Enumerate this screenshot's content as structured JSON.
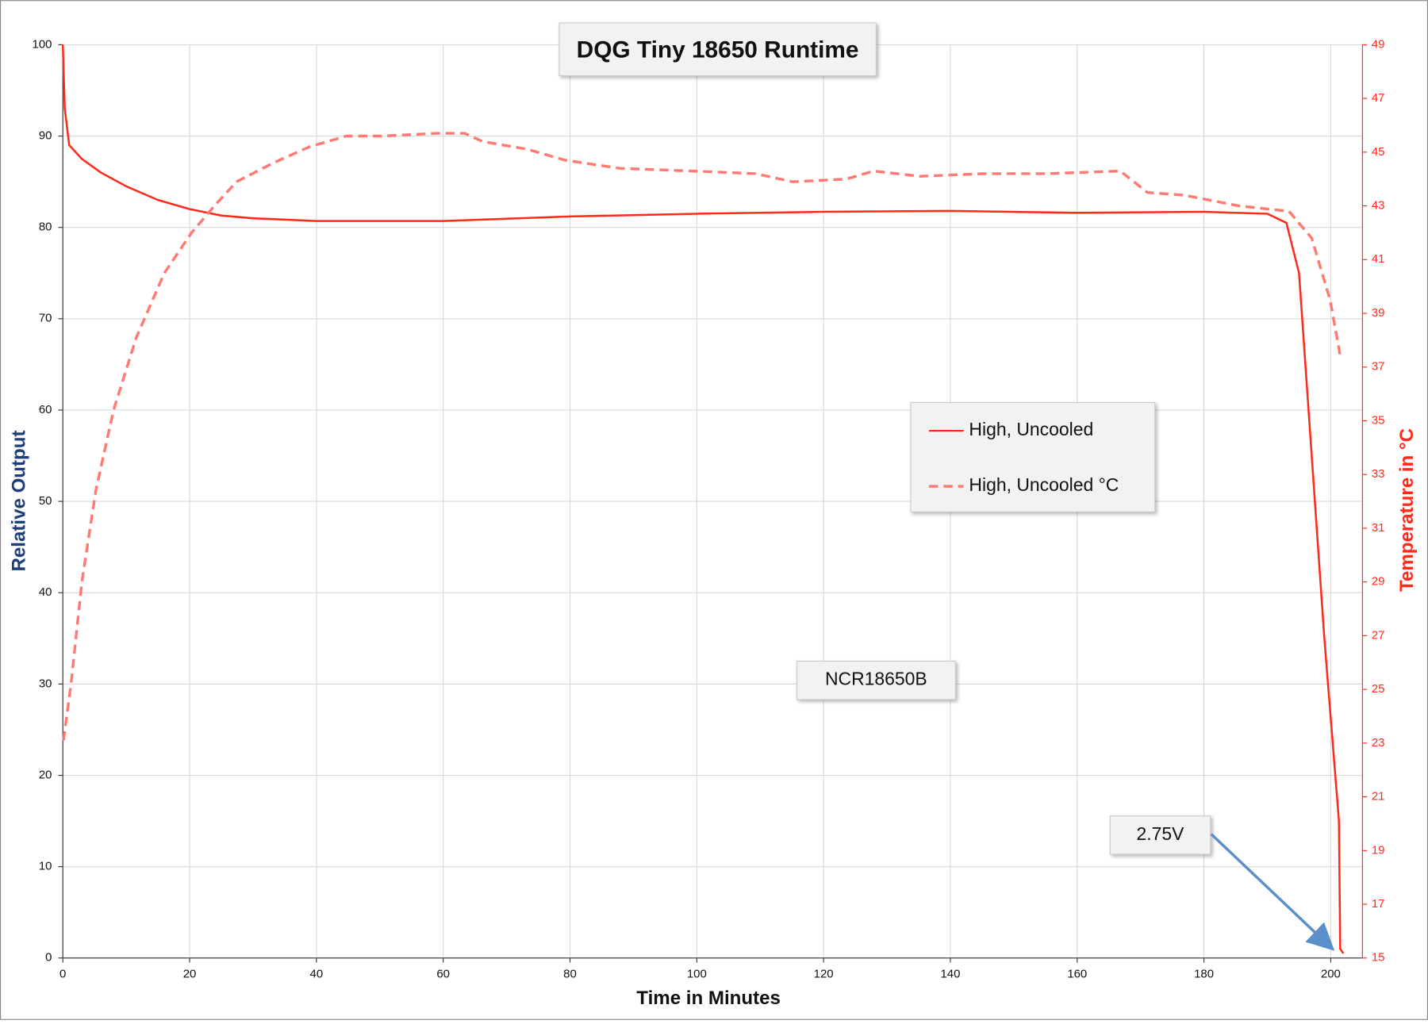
{
  "chart_data": {
    "type": "line",
    "title": "DQG Tiny 18650 Runtime",
    "x_label": "Time in Minutes",
    "y_label": "Relative Output",
    "y2_label": "Temperature in °C",
    "xlim": [
      0,
      205
    ],
    "xticks": [
      0,
      20,
      40,
      60,
      80,
      100,
      120,
      140,
      160,
      180,
      200
    ],
    "ylim": [
      0,
      100
    ],
    "yticks": [
      0,
      10,
      20,
      30,
      40,
      50,
      60,
      70,
      80,
      90,
      100
    ],
    "y2lim": [
      15,
      49
    ],
    "y2ticks": [
      15,
      17,
      19,
      21,
      23,
      25,
      27,
      29,
      31,
      33,
      35,
      37,
      39,
      41,
      43,
      45,
      47,
      49
    ],
    "grid": true,
    "legend_position": "right",
    "series": [
      {
        "name": "High, Uncooled",
        "color": "#ff2a1a",
        "dash": false,
        "x": [
          0,
          0.3,
          1,
          3,
          6,
          10,
          15,
          20,
          25,
          30,
          40,
          60,
          80,
          100,
          120,
          140,
          160,
          180,
          190,
          193,
          195,
          197,
          199,
          201.3,
          201.5,
          202
        ],
        "values": [
          100,
          93,
          89,
          87.5,
          86,
          84.5,
          83,
          82,
          81.3,
          81,
          80.7,
          80.7,
          81.2,
          81.5,
          81.7,
          81.8,
          81.6,
          81.7,
          81.5,
          80.5,
          75,
          55,
          35,
          15,
          1,
          0.5
        ]
      },
      {
        "name": "High, Uncooled °C",
        "color": "#ff7a72",
        "dash": true,
        "axis": "y2",
        "x": [
          0.1,
          1.3,
          3,
          5.2,
          8,
          11.6,
          16,
          20.3,
          23.9,
          27.4,
          33.2,
          38.9,
          44.7,
          50.4,
          59,
          63.4,
          66.2,
          73.4,
          79.2,
          87.8,
          99.3,
          109.3,
          115.1,
          123.6,
          127.9,
          135.2,
          145.2,
          155.3,
          166.8,
          171.1,
          176.9,
          185.5,
          193.4,
          197,
          199.9,
          201.6
        ],
        "values": [
          23.1,
          25.2,
          29,
          32.4,
          35.4,
          38.1,
          40.5,
          42,
          43,
          43.9,
          44.6,
          45.2,
          45.6,
          45.6,
          45.7,
          45.7,
          45.4,
          45.1,
          44.7,
          44.4,
          44.3,
          44.2,
          43.9,
          44,
          44.3,
          44.1,
          44.2,
          44.2,
          44.3,
          43.5,
          43.4,
          43,
          42.8,
          41.8,
          39.5,
          37.3
        ]
      }
    ],
    "annotations": [
      {
        "text": "NCR18650B"
      },
      {
        "text": "2.75V"
      }
    ]
  }
}
